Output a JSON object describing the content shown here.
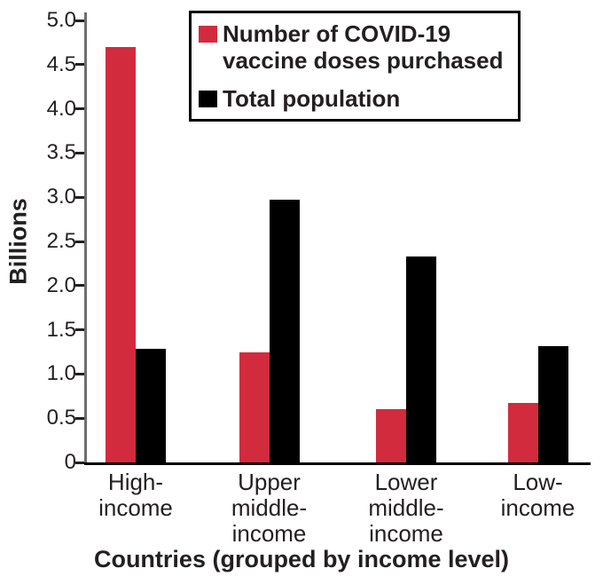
{
  "colors": {
    "doses": "#d22b3e",
    "population": "#000000",
    "y_axis_line": "#6d6e71",
    "x_axis_line": "#000000",
    "text": "#231f20",
    "legend_border": "#000000",
    "background": "#ffffff"
  },
  "legend": {
    "items": [
      {
        "key": "doses",
        "lines": [
          "Number of COVID-19",
          "vaccine doses purchased"
        ],
        "color": "#d22b3e"
      },
      {
        "key": "population",
        "lines": [
          "Total population"
        ],
        "color": "#000000"
      }
    ]
  },
  "y_axis": {
    "title": "Billions",
    "tick_labels": [
      "0",
      "0.5",
      "1.0",
      "1.5",
      "2.0",
      "2.5",
      "3.0",
      "3.5",
      "4.0",
      "4.5",
      "5.0"
    ],
    "tick_values": [
      0,
      0.5,
      1.0,
      1.5,
      2.0,
      2.5,
      3.0,
      3.5,
      4.0,
      4.5,
      5.0
    ]
  },
  "x_axis": {
    "title": "Countries (grouped by income level)",
    "category_label_lines": [
      [
        "High-",
        "income"
      ],
      [
        "Upper",
        "middle-",
        "income"
      ],
      [
        "Lower",
        "middle-",
        "income"
      ],
      [
        "Low-",
        "income"
      ]
    ]
  },
  "chart_data": {
    "type": "bar",
    "title": "",
    "xlabel": "Countries (grouped by income level)",
    "ylabel": "Billions",
    "ylim": [
      0,
      5.0
    ],
    "ytick_step": 0.5,
    "grid": false,
    "legend_position": "top-right",
    "categories": [
      "High-income",
      "Upper middle-income",
      "Lower middle-income",
      "Low-income"
    ],
    "series": [
      {
        "key": "doses",
        "name": "Number of COVID-19 vaccine doses purchased",
        "color": "#d22b3e",
        "values": [
          4.7,
          1.24,
          0.6,
          0.67
        ]
      },
      {
        "key": "population",
        "name": "Total population",
        "color": "#000000",
        "values": [
          1.29,
          2.97,
          2.33,
          1.32
        ]
      }
    ]
  }
}
